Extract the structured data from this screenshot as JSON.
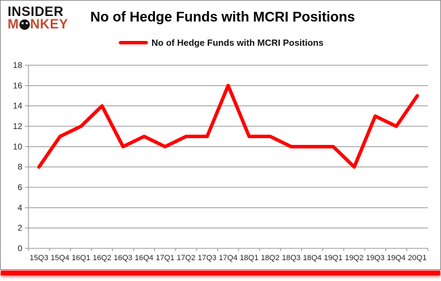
{
  "logo": {
    "line1": "INSIDER",
    "line2_pre": "M",
    "line2_post": "NKEY"
  },
  "header": {
    "title": "No of Hedge Funds with MCRI Positions"
  },
  "legend": {
    "label": "No of Hedge Funds with MCRI Positions"
  },
  "chart_data": {
    "type": "line",
    "title": "No of Hedge Funds with MCRI Positions",
    "series_name": "No of Hedge Funds with MCRI Positions",
    "categories": [
      "15Q3",
      "15Q4",
      "16Q1",
      "16Q2",
      "16Q3",
      "16Q4",
      "17Q1",
      "17Q2",
      "17Q3",
      "17Q4",
      "18Q1",
      "18Q2",
      "18Q3",
      "18Q4",
      "19Q1",
      "19Q2",
      "19Q3",
      "19Q4",
      "20Q1"
    ],
    "values": [
      8,
      11,
      12,
      14,
      10,
      11,
      10,
      11,
      11,
      16,
      11,
      11,
      10,
      10,
      10,
      8,
      13,
      12,
      15
    ],
    "xlabel": "",
    "ylabel": "",
    "ylim": [
      0,
      18
    ],
    "ytick_step": 2,
    "grid": true,
    "legend_position": "top-center"
  },
  "colors": {
    "line_red": "#FF0000",
    "logo_red": "#C5492F",
    "grid_gray": "#8F8F8F",
    "axis_gray": "#8F8F8F",
    "label_color": "#1F1F1F",
    "frame_gray": "#8A8A8A",
    "bottom_bar_red": "#FB0202"
  }
}
